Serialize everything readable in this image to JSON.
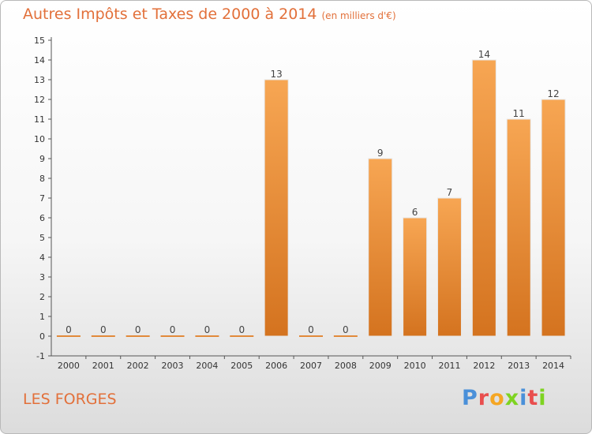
{
  "header": {
    "title": "Autres Impôts et Taxes de 2000 à 2014",
    "subtitle": "(en milliers d'€)"
  },
  "footer": {
    "commune": "LES FORGES",
    "logo_text": "Proxiti"
  },
  "colors": {
    "accent": "#e2703a",
    "bar_light": "#f7a653",
    "bar_dark": "#d4731f",
    "logo_letters": [
      "#4a90d9",
      "#e94e4e",
      "#f5a623",
      "#7ed321",
      "#4a90d9",
      "#e94e4e",
      "#7ed321"
    ]
  },
  "chart_data": {
    "type": "bar",
    "categories": [
      "2000",
      "2001",
      "2002",
      "2003",
      "2004",
      "2005",
      "2006",
      "2007",
      "2008",
      "2009",
      "2010",
      "2011",
      "2012",
      "2013",
      "2014"
    ],
    "values": [
      0,
      0,
      0,
      0,
      0,
      0,
      13,
      0,
      0,
      9,
      6,
      7,
      14,
      11,
      12
    ],
    "data_labels": [
      "0",
      "0",
      "0",
      "0",
      "0",
      "0",
      "13",
      "0",
      "0",
      "9",
      "6",
      "7",
      "14",
      "11",
      "12"
    ],
    "y_ticks": [
      "-1",
      "0",
      "1",
      "2",
      "3",
      "4",
      "5",
      "6",
      "7",
      "8",
      "9",
      "10",
      "11",
      "12",
      "13",
      "14",
      "15"
    ],
    "ylim": [
      -1,
      15
    ],
    "grid": false,
    "legend": "none"
  }
}
